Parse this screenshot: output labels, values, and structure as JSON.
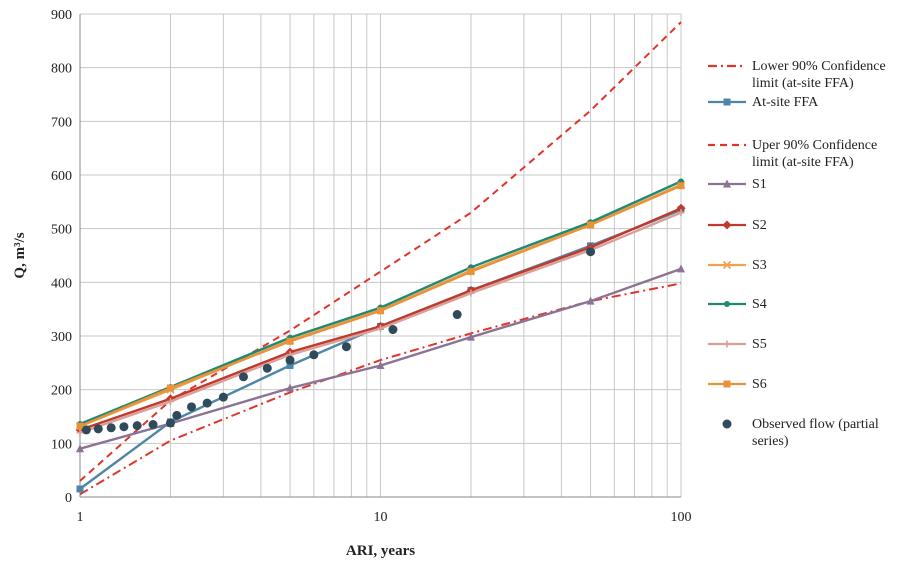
{
  "chart_data": {
    "type": "line",
    "title": "",
    "xlabel": "ARI, years",
    "ylabel": "Q, m³/s",
    "xscale": "log",
    "xlim": [
      1,
      100
    ],
    "ylim": [
      0,
      900
    ],
    "x_ticks": [
      "1",
      "10",
      "100"
    ],
    "y_ticks": [
      "0",
      "100",
      "200",
      "300",
      "400",
      "500",
      "600",
      "700",
      "800",
      "900"
    ],
    "grid": true,
    "legend_position": "right",
    "series": [
      {
        "name": "Lower 90% Confidence limit (at-site FFA)",
        "color": "#e0352b",
        "style": "dashdot",
        "marker": "none",
        "x": [
          1,
          2,
          5,
          10,
          20,
          50,
          100
        ],
        "y": [
          5,
          105,
          195,
          255,
          305,
          365,
          398
        ]
      },
      {
        "name": "At-site FFA",
        "color": "#4f86a8",
        "style": "solid",
        "marker": "square",
        "x": [
          1,
          2,
          5,
          10,
          20,
          50,
          100
        ],
        "y": [
          15,
          140,
          245,
          318,
          385,
          468,
          535
        ]
      },
      {
        "name": "Uper 90% Confidence limit (at-site FFA)",
        "color": "#e0352b",
        "style": "dashed",
        "marker": "none",
        "x": [
          1,
          2,
          5,
          10,
          20,
          50,
          100
        ],
        "y": [
          30,
          180,
          310,
          420,
          530,
          720,
          885
        ]
      },
      {
        "name": "S1",
        "color": "#8a7393",
        "style": "solid",
        "marker": "triangle",
        "x": [
          1,
          2,
          5,
          10,
          20,
          50,
          100
        ],
        "y": [
          90,
          137,
          203,
          245,
          298,
          365,
          425
        ]
      },
      {
        "name": "S2",
        "color": "#c0392b",
        "style": "solid",
        "marker": "diamond",
        "x": [
          1,
          2,
          5,
          10,
          20,
          50,
          100
        ],
        "y": [
          125,
          183,
          270,
          318,
          385,
          465,
          538
        ]
      },
      {
        "name": "S3",
        "color": "#f0a050",
        "style": "solid",
        "marker": "x",
        "x": [
          1,
          2,
          5,
          10,
          20,
          50,
          100
        ],
        "y": [
          132,
          200,
          292,
          348,
          422,
          508,
          582
        ]
      },
      {
        "name": "S4",
        "color": "#1f8a70",
        "style": "solid",
        "marker": "circle",
        "x": [
          1,
          2,
          5,
          10,
          20,
          50,
          100
        ],
        "y": [
          136,
          205,
          297,
          353,
          428,
          512,
          588
        ]
      },
      {
        "name": "S5",
        "color": "#d9a09a",
        "style": "solid",
        "marker": "plus",
        "x": [
          1,
          2,
          5,
          10,
          20,
          50,
          100
        ],
        "y": [
          120,
          178,
          265,
          314,
          380,
          460,
          530
        ]
      },
      {
        "name": "S6",
        "color": "#e8923a",
        "style": "solid",
        "marker": "square",
        "x": [
          1,
          2,
          5,
          10,
          20,
          50,
          100
        ],
        "y": [
          132,
          203,
          290,
          347,
          420,
          507,
          580
        ]
      },
      {
        "name": "Observed flow (partial series)",
        "color": "#2f4a5a",
        "style": "none",
        "marker": "dot",
        "x": [
          1.05,
          1.15,
          1.27,
          1.4,
          1.55,
          1.75,
          2.0,
          2.1,
          2.35,
          2.65,
          3.0,
          3.5,
          4.2,
          5.0,
          6.0,
          7.7,
          11.0,
          18.0,
          50.0
        ],
        "y": [
          125,
          127,
          129,
          131,
          133,
          135,
          138,
          152,
          168,
          175,
          186,
          224,
          240,
          255,
          265,
          280,
          312,
          340,
          457
        ]
      }
    ]
  }
}
